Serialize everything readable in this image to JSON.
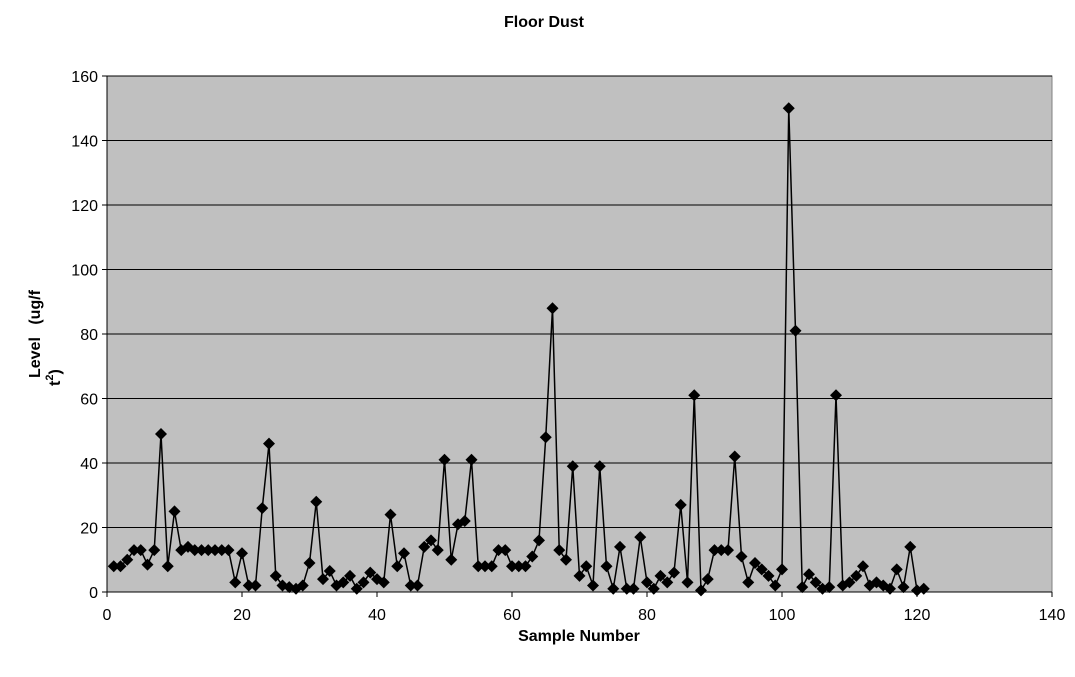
{
  "chart_data": {
    "type": "line",
    "title": "Floor Dust",
    "xlabel": "Sample Number",
    "ylabel": {
      "main": "Level",
      "unit_open": "(ug/f",
      "unit_close": "t",
      "unit_sup": "2",
      "unit_end": ")"
    },
    "xlim": [
      0,
      140
    ],
    "ylim": [
      0,
      160
    ],
    "xticks": [
      0,
      20,
      40,
      60,
      80,
      100,
      120,
      140
    ],
    "yticks": [
      0,
      20,
      40,
      60,
      80,
      100,
      120,
      140,
      160
    ],
    "grid": "horizontal",
    "legend": "none",
    "colors": {
      "plot_background": "#c0c0c0",
      "series": "#000000",
      "grid": "#000000"
    },
    "marker": "diamond",
    "series": [
      {
        "x": [
          1,
          2,
          3,
          4,
          5,
          6,
          7,
          8,
          9,
          10,
          11,
          12,
          13,
          14,
          15,
          16,
          17,
          18,
          19,
          20,
          21,
          22,
          23,
          24,
          25,
          26,
          27,
          28,
          29,
          30,
          31,
          32,
          33,
          34,
          35,
          36,
          37,
          38,
          39,
          40,
          41,
          42,
          43,
          44,
          45,
          46,
          47,
          48,
          49,
          50,
          51,
          52,
          53,
          54,
          55,
          56,
          57,
          58,
          59,
          60,
          61,
          62,
          63,
          64,
          65,
          66,
          67,
          68,
          69,
          70,
          71,
          72,
          73,
          74,
          75,
          76,
          77,
          78,
          79,
          80,
          81,
          82,
          83,
          84,
          85,
          86,
          87,
          88,
          89,
          90,
          91,
          92,
          93,
          94,
          95,
          96,
          97,
          98,
          99,
          100,
          101,
          102,
          103,
          104,
          105,
          106,
          107,
          108,
          109,
          110,
          111,
          112,
          113,
          114,
          115,
          116,
          117,
          118,
          119,
          120,
          121
        ],
        "y": [
          8,
          8,
          10,
          13,
          13,
          8.5,
          13,
          49,
          8,
          25,
          13,
          14,
          13,
          13,
          13,
          13,
          13,
          13,
          3,
          12,
          2,
          2,
          26,
          46,
          5,
          2,
          1.5,
          1,
          2,
          9,
          28,
          4,
          6.5,
          2,
          3,
          5,
          1,
          3,
          6,
          4,
          3,
          24,
          8,
          12,
          2,
          2,
          14,
          16,
          13,
          41,
          10,
          21,
          22,
          41,
          8,
          8,
          8,
          13,
          13,
          8,
          8,
          8,
          11,
          16,
          48,
          88,
          13,
          10,
          39,
          5,
          8,
          2,
          39,
          8,
          1,
          14,
          1,
          1,
          17,
          3,
          1,
          5,
          3,
          6,
          27,
          3,
          61,
          0.5,
          4,
          13,
          13,
          13,
          42,
          11,
          3,
          9,
          7,
          5,
          2,
          7,
          150,
          81,
          1.5,
          5.5,
          3,
          1,
          1.5,
          61,
          2,
          3,
          5,
          8,
          2,
          3,
          2,
          1,
          7,
          1.5,
          14,
          0.5,
          1
        ]
      }
    ]
  }
}
